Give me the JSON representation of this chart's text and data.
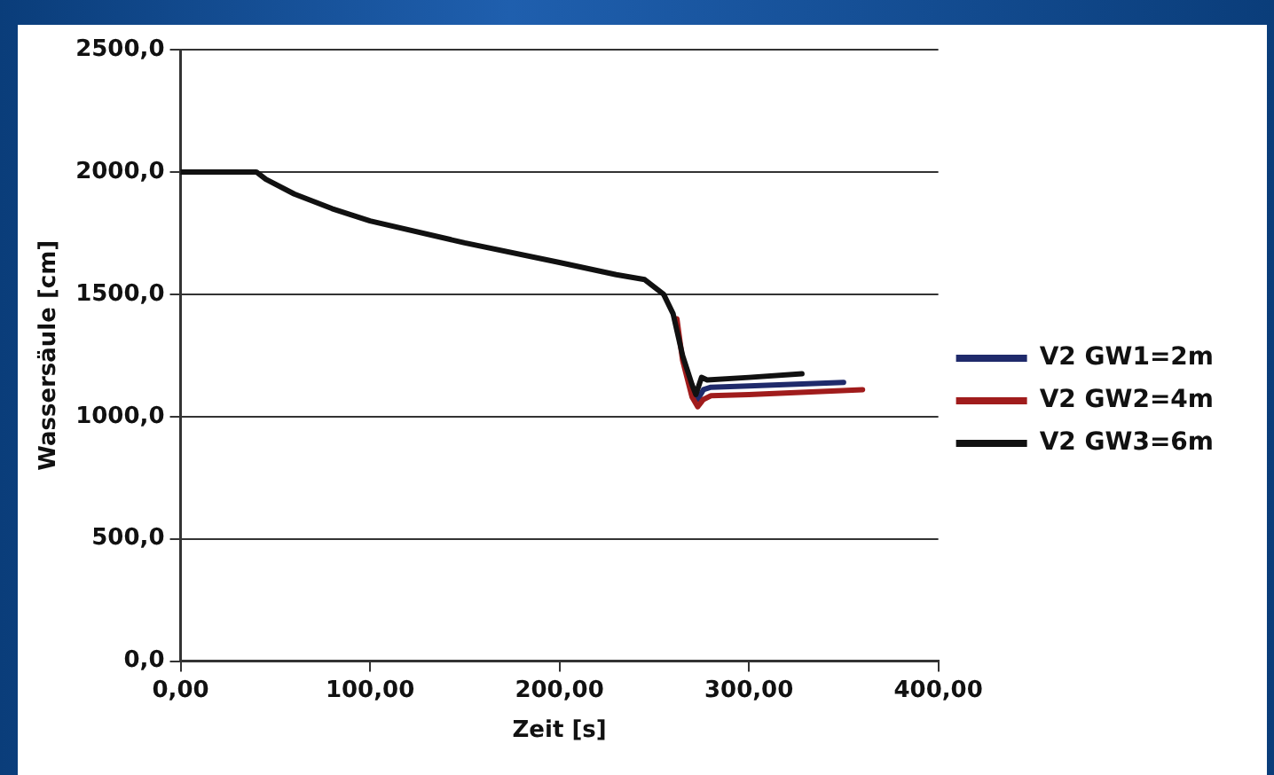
{
  "chart_data": {
    "type": "line",
    "xlabel": "Zeit [s]",
    "ylabel": "Wassersäule [cm]",
    "xlim": [
      0,
      400
    ],
    "ylim": [
      0,
      2500
    ],
    "xticks": [
      {
        "value": 0,
        "label": "0,00"
      },
      {
        "value": 100,
        "label": "100,00"
      },
      {
        "value": 200,
        "label": "200,00"
      },
      {
        "value": 300,
        "label": "300,00"
      },
      {
        "value": 400,
        "label": "400,00"
      }
    ],
    "yticks": [
      {
        "value": 0,
        "label": "0,0"
      },
      {
        "value": 500,
        "label": "500,0"
      },
      {
        "value": 1000,
        "label": "1000,0"
      },
      {
        "value": 1500,
        "label": "1500,0"
      },
      {
        "value": 2000,
        "label": "2000,0"
      },
      {
        "value": 2500,
        "label": "2500,0"
      }
    ],
    "grid": "y",
    "legend": "right",
    "marker": "none",
    "line_style": "solid",
    "series": [
      {
        "name": "V2 GW1=2m",
        "color": "#1f2a6b",
        "x": [
          270,
          273,
          276,
          280,
          300,
          350
        ],
        "values": [
          1100,
          1070,
          1110,
          1120,
          1125,
          1140
        ]
      },
      {
        "name": "V2 GW2=4m",
        "color": "#a01c1c",
        "x": [
          262,
          265,
          270,
          273,
          276,
          280,
          300,
          360
        ],
        "values": [
          1400,
          1230,
          1080,
          1040,
          1070,
          1085,
          1090,
          1110
        ]
      },
      {
        "name": "V2 GW3=6m",
        "color": "#111111",
        "x": [
          0,
          40,
          45,
          60,
          80,
          100,
          150,
          200,
          230,
          245,
          255,
          260,
          265,
          270,
          272,
          275,
          278,
          300,
          328
        ],
        "values": [
          2000,
          2000,
          1970,
          1910,
          1850,
          1800,
          1710,
          1630,
          1580,
          1560,
          1500,
          1420,
          1250,
          1130,
          1090,
          1160,
          1150,
          1160,
          1175
        ]
      }
    ]
  }
}
